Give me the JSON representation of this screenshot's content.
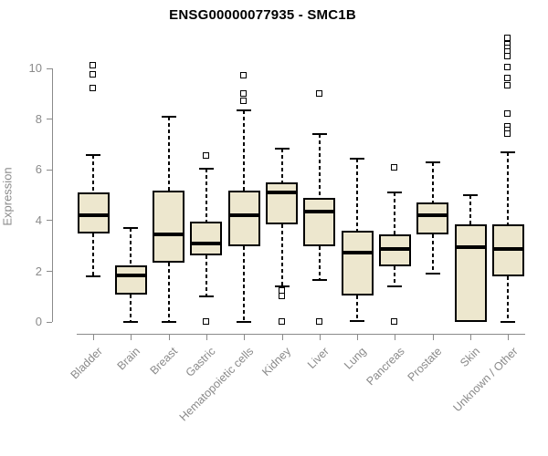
{
  "title": "ENSG00000077935 - SMC1B",
  "colors": {
    "box_fill": "#EDE7CE",
    "box_border": "#000000",
    "median": "#000000",
    "axis": "#8A8A8A",
    "muted_text": "#8A8A8A",
    "title_text": "#000000",
    "outlier_fill": "#FFFFFF"
  },
  "chart_data": {
    "type": "boxplot",
    "title": "ENSG00000077935 - SMC1B",
    "xlabel": "",
    "ylabel": "Expression",
    "ylim": [
      0,
      11.4
    ],
    "yticks": [
      0,
      2,
      4,
      6,
      8,
      10
    ],
    "grid": false,
    "legend": false,
    "categories": [
      "Bladder",
      "Brain",
      "Breast",
      "Gastric",
      "Hematopoietic cells",
      "Kidney",
      "Liver",
      "Lung",
      "Pancreas",
      "Prostate",
      "Skin",
      "Unknown / Other"
    ],
    "series": [
      {
        "category": "Bladder",
        "whisker_low": 1.8,
        "q1": 3.5,
        "median": 4.2,
        "q3": 5.1,
        "whisker_high": 6.6,
        "outliers": [
          9.2,
          9.75,
          10.1
        ]
      },
      {
        "category": "Brain",
        "whisker_low": 0.0,
        "q1": 1.1,
        "median": 1.85,
        "q3": 2.25,
        "whisker_high": 3.7,
        "outliers": []
      },
      {
        "category": "Breast",
        "whisker_low": 0.0,
        "q1": 2.35,
        "median": 3.45,
        "q3": 5.2,
        "whisker_high": 8.1,
        "outliers": []
      },
      {
        "category": "Gastric",
        "whisker_low": 1.0,
        "q1": 2.65,
        "median": 3.1,
        "q3": 3.95,
        "whisker_high": 6.05,
        "outliers": [
          6.55,
          0.0
        ]
      },
      {
        "category": "Hematopoietic cells",
        "whisker_low": 0.0,
        "q1": 3.0,
        "median": 4.2,
        "q3": 5.2,
        "whisker_high": 8.35,
        "outliers": [
          9.7,
          9.0,
          8.7
        ]
      },
      {
        "category": "Kidney",
        "whisker_low": 1.4,
        "q1": 3.85,
        "median": 5.1,
        "q3": 5.5,
        "whisker_high": 6.85,
        "outliers": [
          1.25,
          1.0,
          0.0
        ]
      },
      {
        "category": "Liver",
        "whisker_low": 1.65,
        "q1": 3.0,
        "median": 4.35,
        "q3": 4.9,
        "whisker_high": 7.4,
        "outliers": [
          9.0,
          0.0
        ]
      },
      {
        "category": "Lung",
        "whisker_low": 0.05,
        "q1": 1.05,
        "median": 2.75,
        "q3": 3.6,
        "whisker_high": 6.45,
        "outliers": []
      },
      {
        "category": "Pancreas",
        "whisker_low": 1.4,
        "q1": 2.2,
        "median": 2.9,
        "q3": 3.45,
        "whisker_high": 5.1,
        "outliers": [
          6.1,
          0.0
        ]
      },
      {
        "category": "Prostate",
        "whisker_low": 1.9,
        "q1": 3.45,
        "median": 4.2,
        "q3": 4.7,
        "whisker_high": 6.3,
        "outliers": []
      },
      {
        "category": "Skin",
        "whisker_low": null,
        "q1": 0.0,
        "median": 2.95,
        "q3": 3.85,
        "whisker_high": 5.0,
        "outliers": []
      },
      {
        "category": "Unknown / Other",
        "whisker_low": 0.0,
        "q1": 1.8,
        "median": 2.9,
        "q3": 3.85,
        "whisker_high": 6.7,
        "outliers": [
          11.2,
          10.95,
          10.8,
          10.65,
          10.45,
          10.05,
          9.6,
          9.3,
          8.2,
          7.7,
          7.55,
          7.4
        ]
      }
    ]
  }
}
